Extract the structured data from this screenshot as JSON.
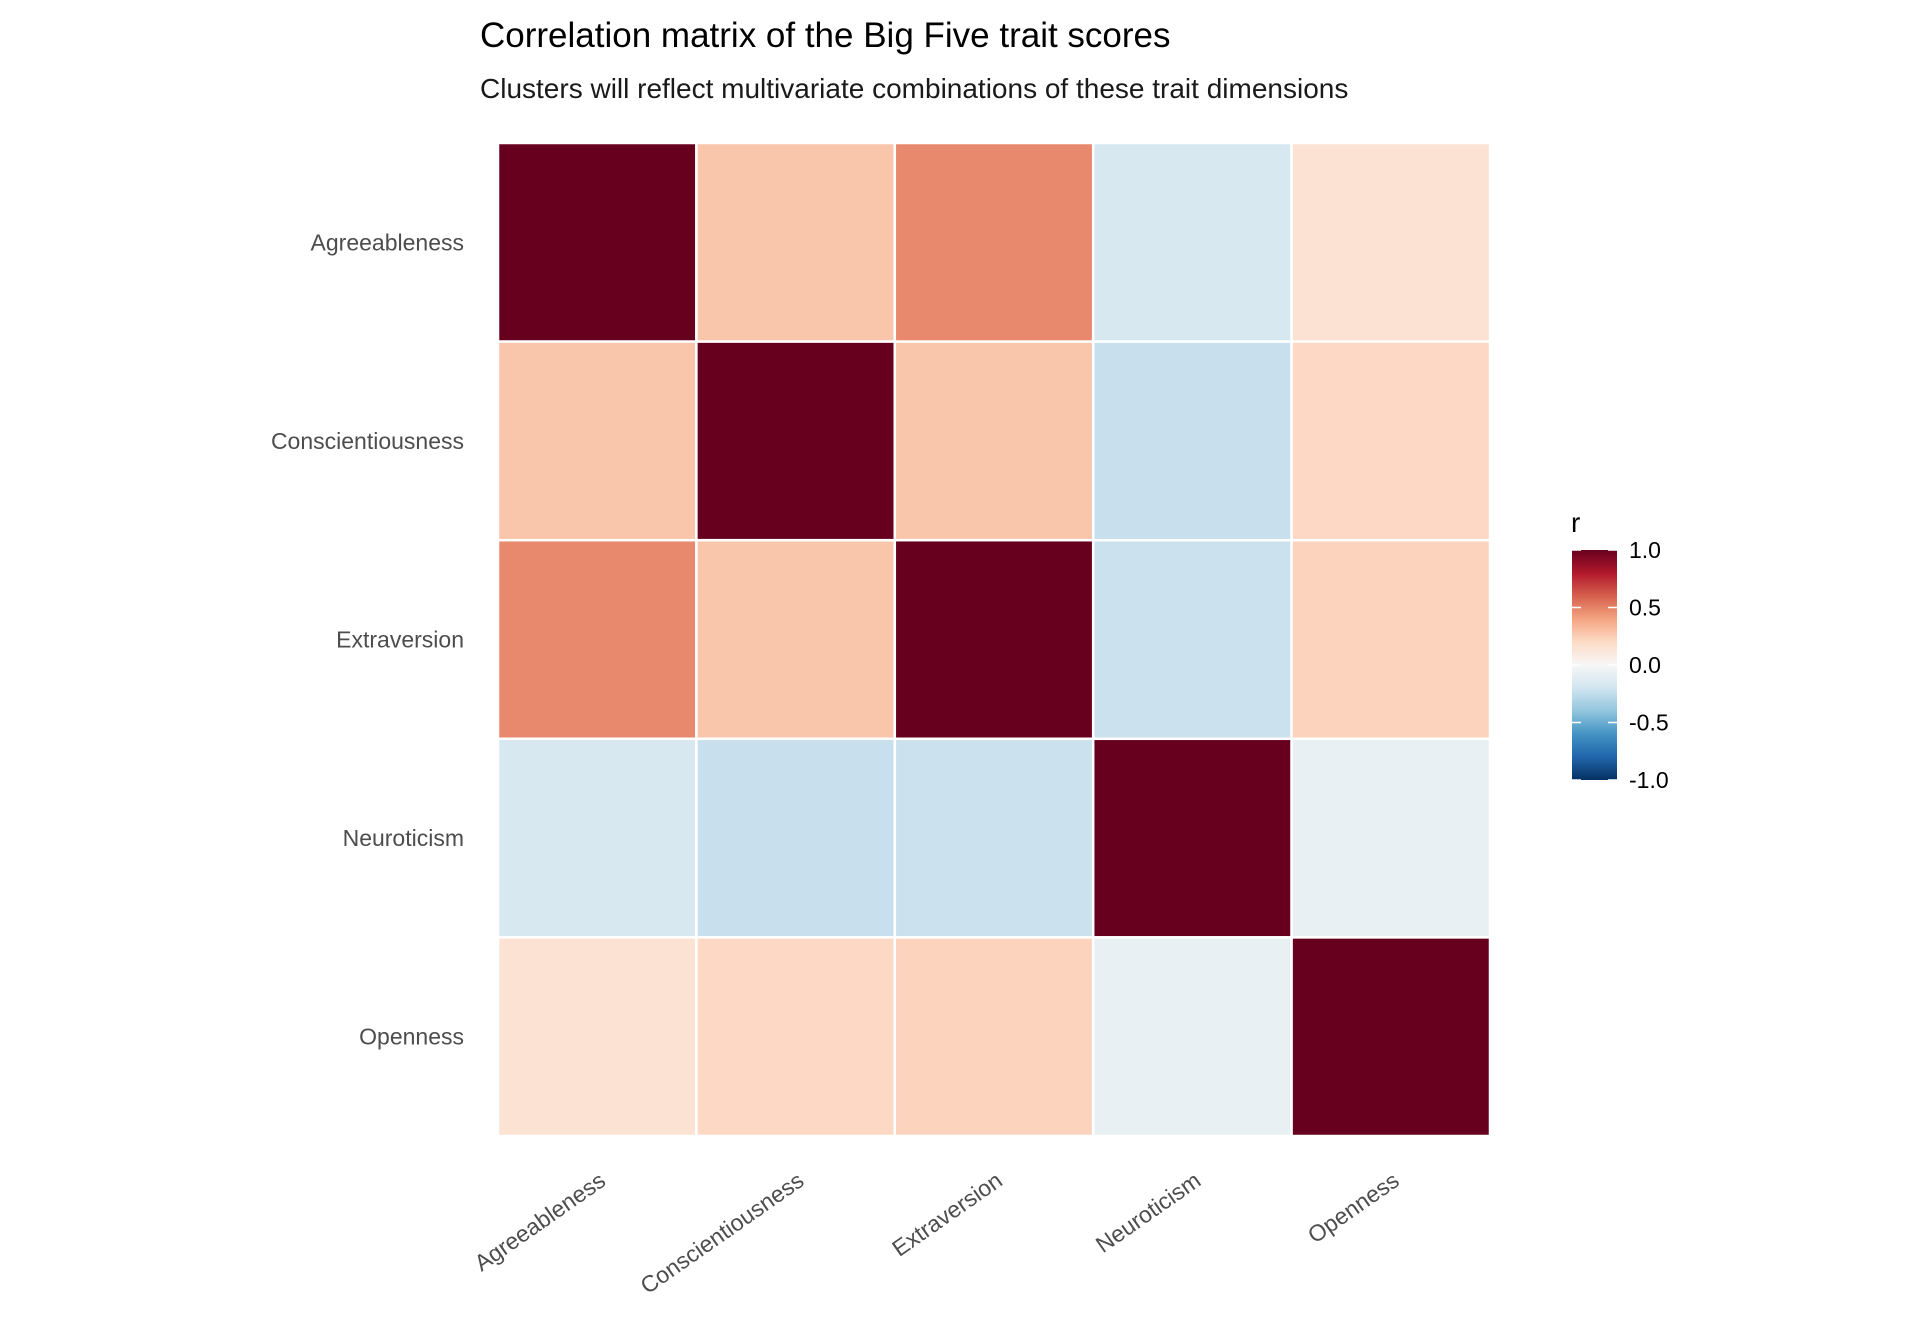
{
  "chart_data": {
    "type": "heatmap",
    "title": "Correlation matrix of the Big Five trait scores",
    "subtitle": "Clusters will reflect multivariate combinations of these trait dimensions",
    "xlabel": "",
    "ylabel": "",
    "x_categories": [
      "Agreeableness",
      "Conscientiousness",
      "Extraversion",
      "Neuroticism",
      "Openness"
    ],
    "y_categories": [
      "Agreeableness",
      "Conscientiousness",
      "Extraversion",
      "Neuroticism",
      "Openness"
    ],
    "values": [
      [
        1.0,
        0.28,
        0.48,
        -0.17,
        0.15
      ],
      [
        0.28,
        1.0,
        0.28,
        -0.23,
        0.21
      ],
      [
        0.48,
        0.28,
        1.0,
        -0.22,
        0.23
      ],
      [
        -0.17,
        -0.23,
        -0.22,
        1.0,
        -0.08
      ],
      [
        0.15,
        0.21,
        0.23,
        -0.08,
        1.0
      ]
    ],
    "legend": {
      "title": "r",
      "position": "right",
      "range": [
        -1.0,
        1.0
      ],
      "ticks": [
        1.0,
        0.5,
        0.0,
        -0.5,
        -1.0
      ],
      "tick_labels": [
        "1.0",
        "0.5",
        "0.0",
        "-0.5",
        "-1.0"
      ]
    },
    "colors": {
      "low": "#2166AC",
      "mid": "#FFFFFF",
      "high": "#A50026",
      "palette": [
        "#053061",
        "#2166AC",
        "#4393C3",
        "#92C5DE",
        "#D1E5F0",
        "#F7F7F7",
        "#FDDBC7",
        "#F4A582",
        "#D6604D",
        "#B2182B",
        "#67001F"
      ]
    }
  }
}
